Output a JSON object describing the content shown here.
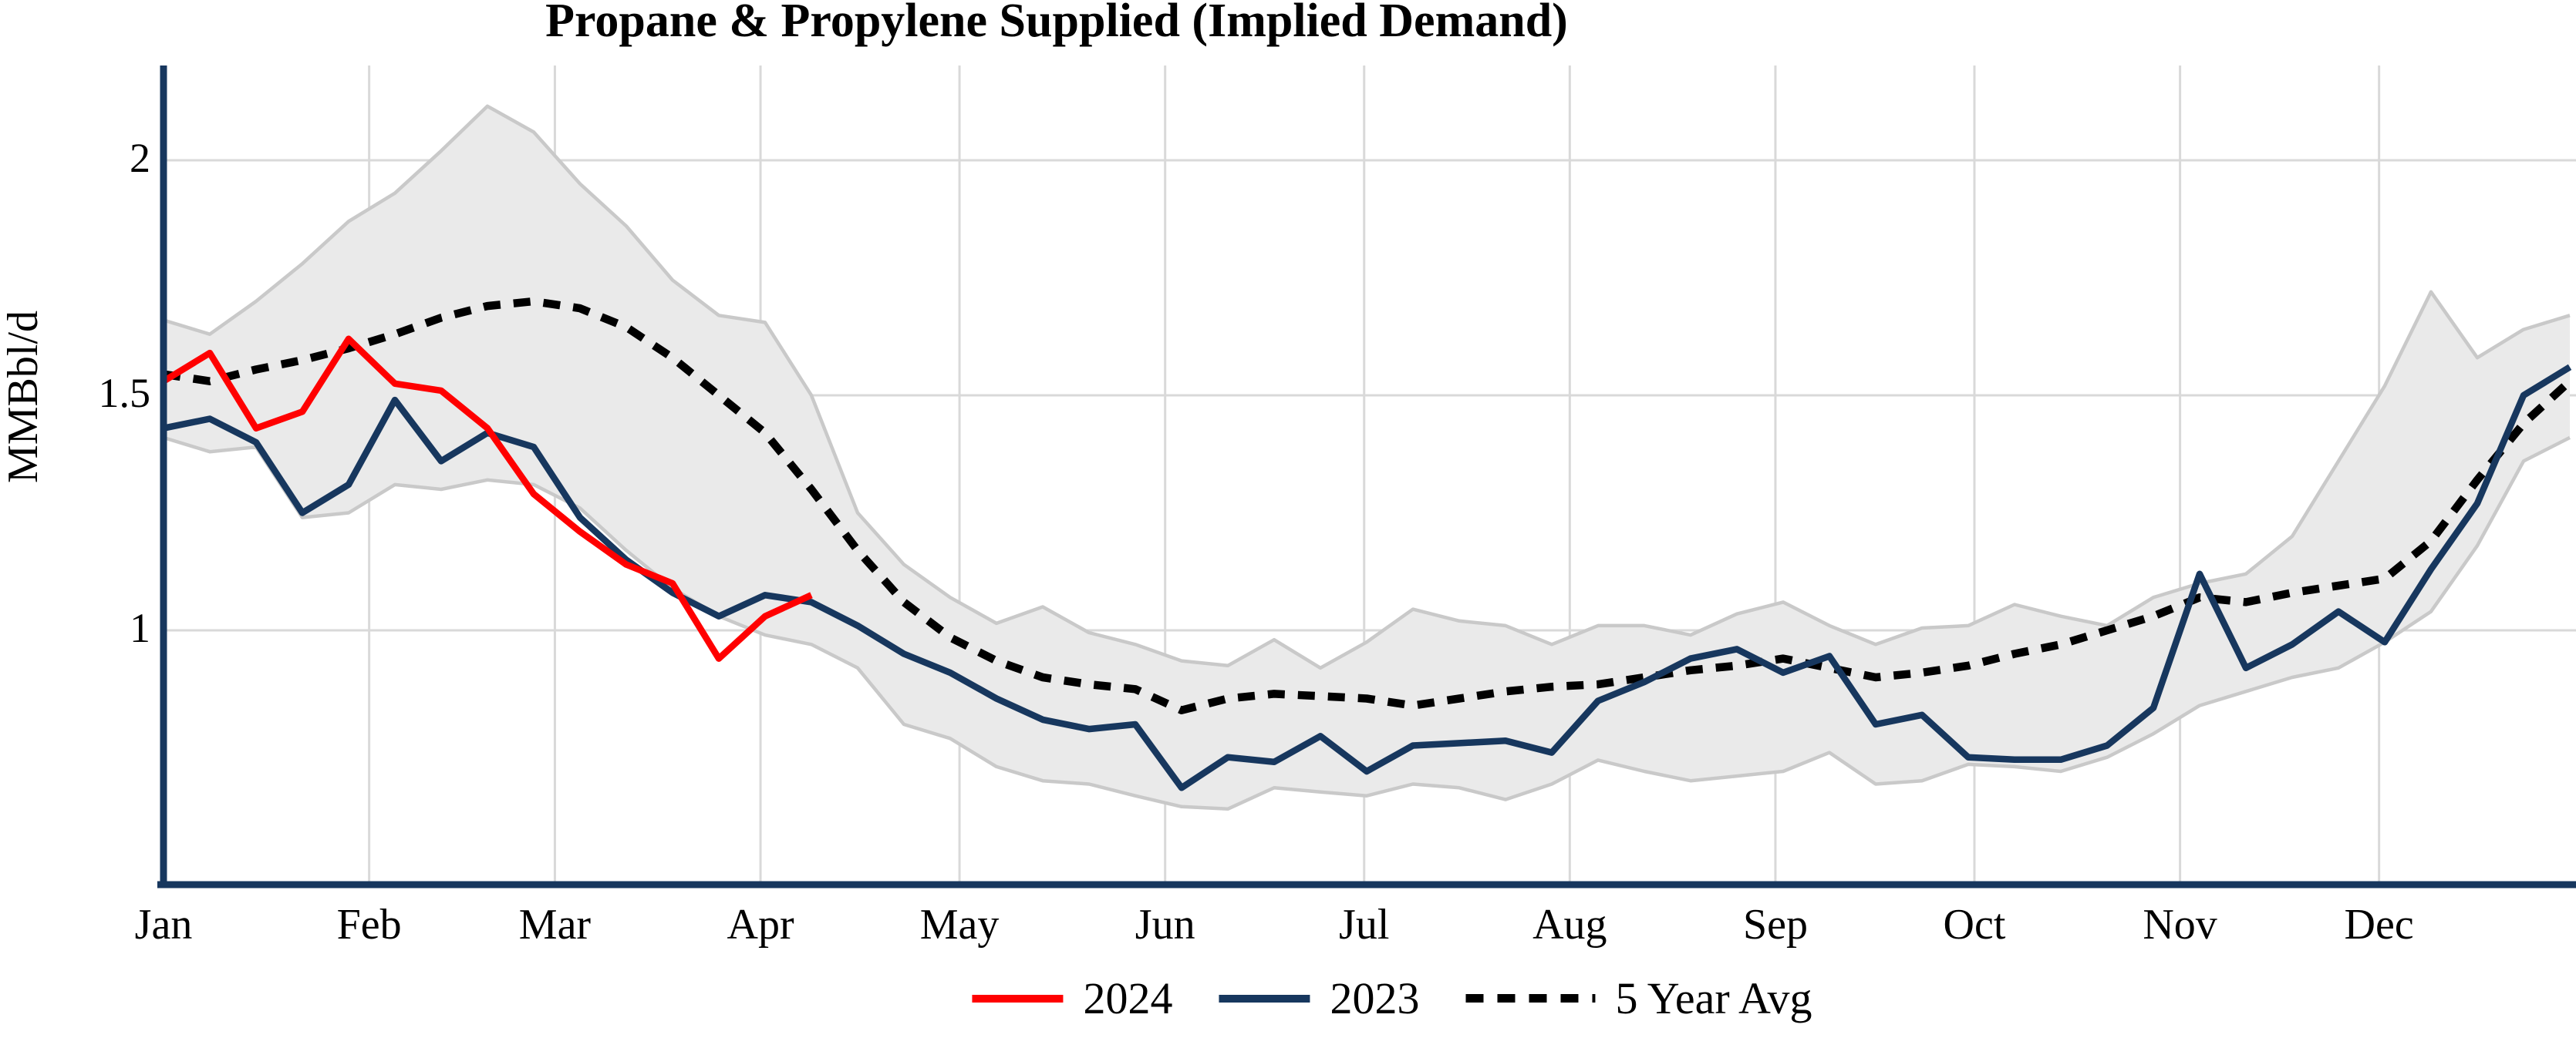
{
  "chart_data": {
    "type": "line",
    "title": "Propane & Propylene Supplied (Implied Demand)",
    "ylabel": "MMBbl/d",
    "x_unit": "week_of_year",
    "x_tick_labels": [
      "Jan",
      "Feb",
      "Mar",
      "Apr",
      "May",
      "Jun",
      "Jul",
      "Aug",
      "Sep",
      "Oct",
      "Nov",
      "Dec"
    ],
    "y_ticks": [
      {
        "label": "2",
        "value": 2
      },
      {
        "label": "1.5",
        "value": 1.5
      },
      {
        "label": "1",
        "value": 1
      }
    ],
    "ylim": [
      0.45,
      2.25
    ],
    "grid": "on",
    "legend_position": "bottom-center",
    "series": [
      {
        "name": "2024",
        "color": "#ff0000",
        "style": "solid",
        "start_week": 0,
        "values": [
          1.53,
          1.59,
          1.43,
          1.465,
          1.62,
          1.525,
          1.51,
          1.43,
          1.29,
          1.21,
          1.14,
          1.1,
          0.94,
          1.03,
          1.075
        ]
      },
      {
        "name": "2023",
        "color": "#17375e",
        "style": "solid",
        "start_week": 0,
        "values": [
          1.43,
          1.45,
          1.4,
          1.25,
          1.31,
          1.49,
          1.36,
          1.42,
          1.39,
          1.24,
          1.15,
          1.08,
          1.03,
          1.075,
          1.06,
          1.01,
          0.95,
          0.91,
          0.855,
          0.81,
          0.79,
          0.8,
          0.665,
          0.73,
          0.72,
          0.775,
          0.7,
          0.755,
          0.76,
          0.765,
          0.74,
          0.85,
          0.89,
          0.94,
          0.96,
          0.91,
          0.945,
          0.8,
          0.82,
          0.73,
          0.725,
          0.725,
          0.755,
          0.835,
          1.12,
          0.92,
          0.97,
          1.04,
          0.975,
          1.13,
          1.27,
          1.5,
          1.56
        ]
      },
      {
        "name": "5 Year Avg",
        "color": "#000000",
        "style": "dashed",
        "start_week": 0,
        "values": [
          1.545,
          1.53,
          1.555,
          1.575,
          1.6,
          1.63,
          1.665,
          1.69,
          1.7,
          1.685,
          1.645,
          1.58,
          1.5,
          1.42,
          1.3,
          1.17,
          1.06,
          0.985,
          0.935,
          0.9,
          0.885,
          0.875,
          0.83,
          0.855,
          0.865,
          0.86,
          0.855,
          0.84,
          0.855,
          0.87,
          0.88,
          0.885,
          0.9,
          0.915,
          0.925,
          0.94,
          0.92,
          0.9,
          0.91,
          0.925,
          0.95,
          0.97,
          1.0,
          1.03,
          1.07,
          1.06,
          1.08,
          1.095,
          1.11,
          1.19,
          1.32,
          1.44,
          1.53
        ]
      }
    ],
    "band": {
      "name": "5-year min-max range",
      "fill": "#eaeaea",
      "edge": "#c9c9c9",
      "top": [
        1.66,
        1.63,
        1.7,
        1.78,
        1.87,
        1.93,
        2.02,
        2.115,
        2.06,
        1.95,
        1.86,
        1.745,
        1.67,
        1.655,
        1.5,
        1.25,
        1.14,
        1.07,
        1.015,
        1.05,
        0.995,
        0.97,
        0.935,
        0.925,
        0.98,
        0.92,
        0.975,
        1.045,
        1.02,
        1.01,
        0.97,
        1.01,
        1.01,
        0.99,
        1.035,
        1.06,
        1.01,
        0.97,
        1.005,
        1.01,
        1.055,
        1.03,
        1.01,
        1.07,
        1.1,
        1.12,
        1.2,
        1.36,
        1.52,
        1.72,
        1.58,
        1.64,
        1.67
      ],
      "bottom": [
        1.41,
        1.38,
        1.39,
        1.24,
        1.25,
        1.31,
        1.3,
        1.32,
        1.31,
        1.26,
        1.17,
        1.09,
        1.03,
        0.99,
        0.97,
        0.92,
        0.8,
        0.77,
        0.71,
        0.68,
        0.673,
        0.648,
        0.625,
        0.62,
        0.665,
        0.656,
        0.648,
        0.673,
        0.665,
        0.64,
        0.673,
        0.724,
        0.7,
        0.68,
        0.69,
        0.7,
        0.74,
        0.673,
        0.68,
        0.715,
        0.71,
        0.7,
        0.73,
        0.78,
        0.84,
        0.87,
        0.9,
        0.92,
        0.975,
        1.04,
        1.18,
        1.36,
        1.41
      ]
    },
    "axis_color": "#17375e",
    "gridline_color": "#d9d9d9"
  }
}
